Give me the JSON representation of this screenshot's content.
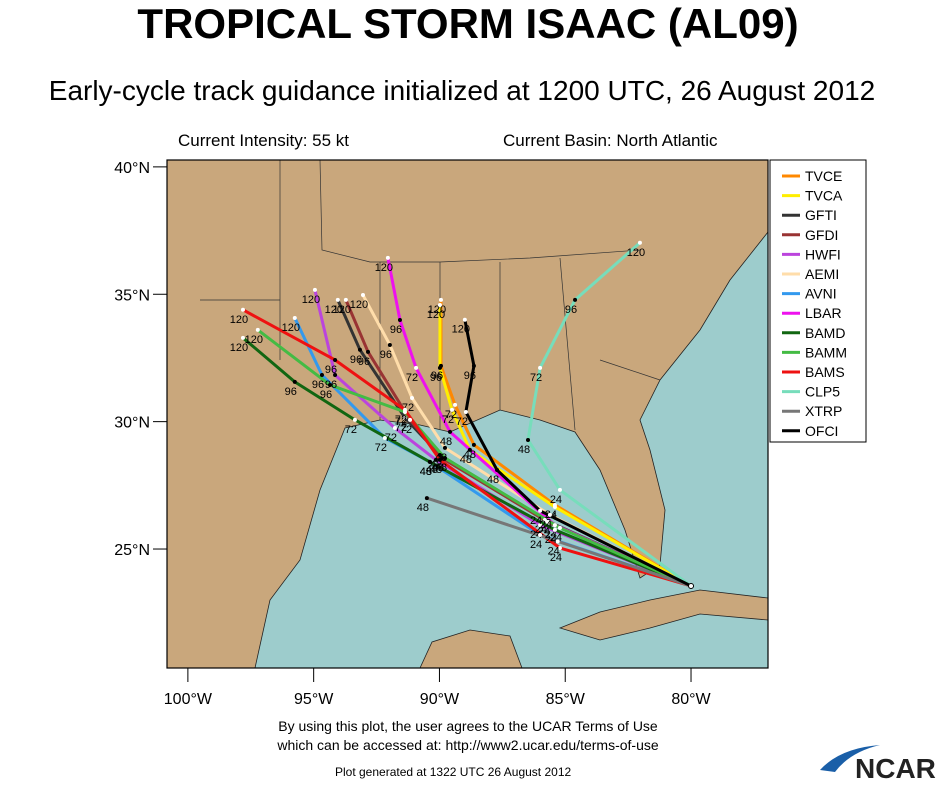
{
  "chart_data": {
    "type": "track",
    "title": "TROPICAL STORM ISAAC (AL09)",
    "subtitle": "Early-cycle track guidance initialized at 1200 UTC, 26 August 2012",
    "intensity": "Current Intensity: 55 kt",
    "basin": "Current Basin: North Atlantic",
    "xlim": [
      -100.83,
      -76.94
    ],
    "ylim": [
      20.33,
      40.27
    ],
    "xticks": [
      {
        "value": -100,
        "label": "100°W"
      },
      {
        "value": -95,
        "label": "95°W"
      },
      {
        "value": -90,
        "label": "90°W"
      },
      {
        "value": -85,
        "label": "85°W"
      },
      {
        "value": -80,
        "label": "80°W"
      }
    ],
    "yticks": [
      {
        "value": 25,
        "label": "25°N"
      },
      {
        "value": 30,
        "label": "30°N"
      },
      {
        "value": 35,
        "label": "35°N"
      },
      {
        "value": 40,
        "label": "40°N"
      }
    ],
    "initial": {
      "lon": -80.0,
      "lat": 23.55
    },
    "hours": [
      24,
      48,
      72,
      96,
      120
    ],
    "series": [
      {
        "name": "TVCE",
        "color": "#ff8800",
        "lon": [
          -85.41,
          -88.63,
          -89.38,
          -89.94,
          -89.94
        ],
        "lat": [
          26.73,
          29.09,
          30.66,
          32.19,
          34.78
        ]
      },
      {
        "name": "TVCA",
        "color": "#ffee00",
        "lon": [
          -85.41,
          -88.79,
          -89.5,
          -89.98,
          -89.98
        ],
        "lat": [
          26.65,
          28.89,
          30.46,
          32.11,
          34.58
        ]
      },
      {
        "name": "GFTI",
        "color": "#333333",
        "lon": [
          -85.81,
          -89.98,
          -91.37,
          -93.16,
          -94.04
        ],
        "lat": [
          26.14,
          28.69,
          30.15,
          32.82,
          34.78
        ]
      },
      {
        "name": "GFDI",
        "color": "#993333",
        "lon": [
          -85.69,
          -89.9,
          -91.17,
          -92.84,
          -93.72
        ],
        "lat": [
          26.06,
          28.57,
          30.07,
          32.74,
          34.78
        ]
      },
      {
        "name": "HWFI",
        "color": "#bb44dd",
        "lon": [
          -86.0,
          -90.14,
          -91.77,
          -94.15,
          -94.95
        ],
        "lat": [
          25.94,
          28.5,
          29.75,
          31.83,
          35.17
        ]
      },
      {
        "name": "AEMI",
        "color": "#ffddaa",
        "lon": [
          -85.61,
          -89.78,
          -91.09,
          -91.97,
          -93.04
        ],
        "lat": [
          26.34,
          28.97,
          30.93,
          33.01,
          34.97
        ]
      },
      {
        "name": "AVNI",
        "color": "#3399ee",
        "lon": [
          -86.0,
          -90.38,
          -92.17,
          -94.67,
          -95.75
        ],
        "lat": [
          25.55,
          28.42,
          29.36,
          31.83,
          34.07
        ]
      },
      {
        "name": "LBAR",
        "color": "#ee11ee",
        "lon": [
          -85.41,
          -89.58,
          -90.93,
          -91.57,
          -92.05
        ],
        "lat": [
          25.94,
          29.6,
          32.11,
          33.99,
          36.43
        ]
      },
      {
        "name": "BAMD",
        "color": "#116611",
        "lon": [
          -85.41,
          -90.38,
          -93.36,
          -95.75,
          -97.81
        ],
        "lat": [
          25.75,
          28.42,
          30.07,
          31.56,
          33.29
        ]
      },
      {
        "name": "BAMM",
        "color": "#44bb44",
        "lon": [
          -85.21,
          -89.78,
          -91.37,
          -94.35,
          -97.22
        ],
        "lat": [
          25.83,
          28.57,
          30.38,
          31.44,
          33.6
        ]
      },
      {
        "name": "BAMS",
        "color": "#ee1111",
        "lon": [
          -85.21,
          -89.98,
          -91.37,
          -94.15,
          -97.81
        ],
        "lat": [
          25.04,
          28.5,
          30.46,
          32.42,
          34.39
        ]
      },
      {
        "name": "CLP5",
        "color": "#77ddbb",
        "lon": [
          -85.21,
          -86.48,
          -86.0,
          -84.61,
          -82.03
        ],
        "lat": [
          27.32,
          29.28,
          32.11,
          34.78,
          37.02
        ]
      },
      {
        "name": "XTRP",
        "color": "#777777",
        "lon": [
          -85.3,
          -90.5,
          null,
          null,
          null
        ],
        "lat": [
          25.3,
          27.0,
          null,
          null,
          null
        ]
      },
      {
        "name": "OFCI",
        "color": "#000000",
        "lon": [
          -86.0,
          -87.71,
          -88.95,
          -88.63,
          -88.99
        ],
        "lat": [
          26.5,
          28.1,
          30.38,
          32.19,
          34.0
        ]
      }
    ]
  },
  "footer": {
    "terms1": "By using this plot, the user agrees to the UCAR Terms of Use",
    "terms2": "which can be accessed at: http://www2.ucar.edu/terms-of-use",
    "generated": "Plot generated at 1322 UTC   26 August 2012",
    "logo": "NCAR"
  }
}
